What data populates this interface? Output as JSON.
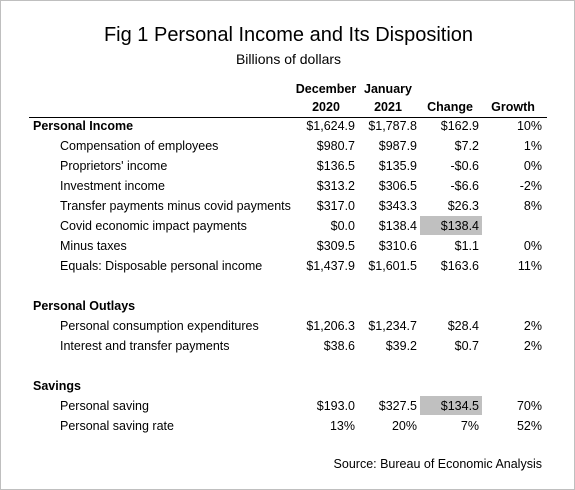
{
  "header": {
    "title": "Fig 1 Personal Income and Its Disposition",
    "subtitle": "Billions of dollars"
  },
  "table": {
    "columns": [
      {
        "line1": "December",
        "line2": "2020"
      },
      {
        "line1": "January",
        "line2": "2021"
      },
      {
        "line2": "Change"
      },
      {
        "line2": "Growth"
      }
    ],
    "sections": [
      {
        "title": "Personal Income",
        "cells": [
          "$1,624.9",
          "$1,787.8",
          "$162.9",
          "10%"
        ],
        "rows": [
          {
            "label": "Compensation of employees",
            "cells": [
              "$980.7",
              "$987.9",
              "$7.2",
              "1%"
            ]
          },
          {
            "label": "Proprietors' income",
            "cells": [
              "$136.5",
              "$135.9",
              "-$0.6",
              "0%"
            ]
          },
          {
            "label": "Investment income",
            "cells": [
              "$313.2",
              "$306.5",
              "-$6.6",
              "-2%"
            ]
          },
          {
            "label": "Transfer payments minus covid payments",
            "cells": [
              "$317.0",
              "$343.3",
              "$26.3",
              "8%"
            ]
          },
          {
            "label": "Covid economic impact payments",
            "cells": [
              "$0.0",
              "$138.4",
              "$138.4"
            ],
            "highlight_change": true
          },
          {
            "label": "Minus taxes",
            "cells": [
              "$309.5",
              "$310.6",
              "$1.1",
              "0%"
            ]
          },
          {
            "label": "Equals: Disposable personal income",
            "cells": [
              "$1,437.9",
              "$1,601.5",
              "$163.6",
              "11%"
            ]
          }
        ]
      },
      {
        "title": "Personal Outlays",
        "rows": [
          {
            "label": "Personal consumption expenditures",
            "cells": [
              "$1,206.3",
              "$1,234.7",
              "$28.4",
              "2%"
            ]
          },
          {
            "label": "Interest and transfer payments",
            "cells": [
              "$38.6",
              "$39.2",
              "$0.7",
              "2%"
            ]
          }
        ]
      },
      {
        "title": "Savings",
        "rows": [
          {
            "label": "Personal saving",
            "cells": [
              "$193.0",
              "$327.5",
              "$134.5",
              "70%"
            ],
            "highlight_change": true
          },
          {
            "label": "Personal saving rate",
            "cells": [
              "13%",
              "20%",
              "7%",
              "52%"
            ]
          }
        ]
      }
    ]
  },
  "footer": {
    "source": "Source: Bureau of Economic Analysis"
  }
}
